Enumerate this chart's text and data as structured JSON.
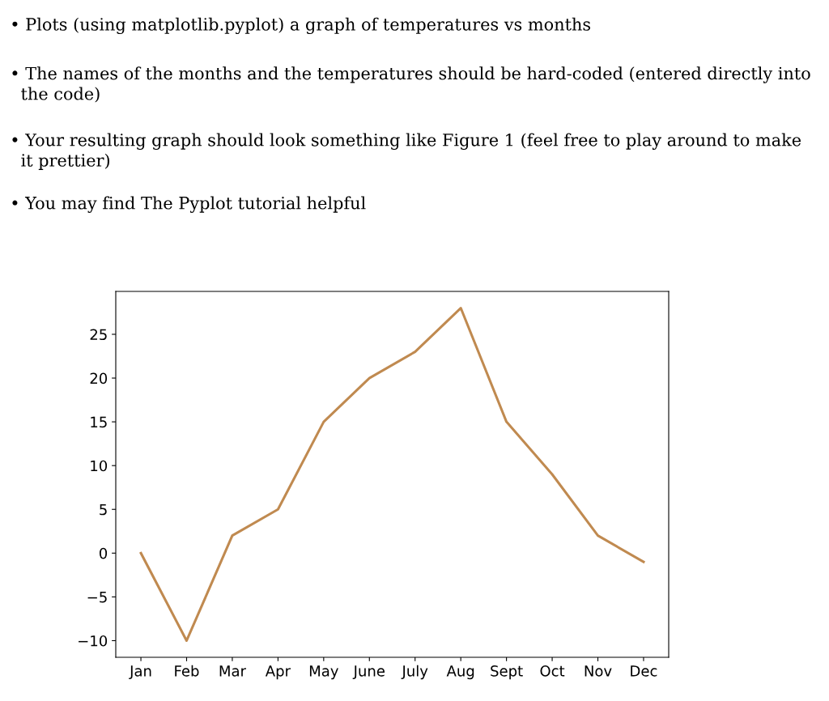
{
  "chart_data": {
    "type": "line",
    "annotations": [
      "• Plots (using matplotlib.pyplot) a graph of temperatures vs months",
      "• The names of the months and the temperatures should be hard-coded (entered directly into\n  the code)",
      "• Your resulting graph should look something like Figure 1 (feel free to play around to make\n  it prettier)",
      "• You may find The Pyplot tutorial helpful"
    ],
    "categories": [
      "Jan",
      "Feb",
      "Mar",
      "Apr",
      "May",
      "June",
      "July",
      "Aug",
      "Sept",
      "Oct",
      "Nov",
      "Dec"
    ],
    "series": [
      {
        "color": "#c08a50",
        "values": [
          0,
          -10,
          2,
          5,
          15,
          20,
          23,
          28,
          15,
          9,
          2,
          -1
        ]
      }
    ],
    "ylim": [
      -11.9,
      29.9
    ],
    "yticks": [
      {
        "value": -10,
        "label": "−10"
      },
      {
        "value": -5,
        "label": "−5"
      },
      0,
      5,
      10,
      15,
      20,
      25
    ],
    "grid": false,
    "legend": false,
    "marker": "none",
    "line_style": "solid"
  }
}
